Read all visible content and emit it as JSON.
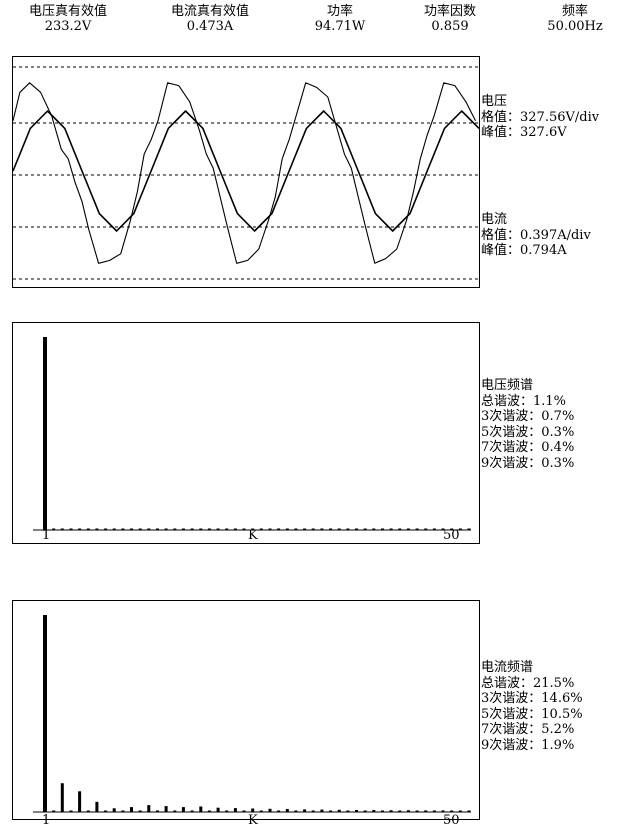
{
  "header": [
    {
      "label": "电压真有效值",
      "value": "233.2V"
    },
    {
      "label": "电流真有效值",
      "value": "0.473A"
    },
    {
      "label": "功率",
      "value": "94.71W"
    },
    {
      "label": "功率因数",
      "value": "0.859"
    },
    {
      "label": "频率",
      "value": "50.00Hz"
    }
  ],
  "waveform": {
    "voltage": {
      "title": "电压",
      "scale": "格值：327.56V/div",
      "peak": "峰值：327.6V"
    },
    "current": {
      "title": "电流",
      "scale": "格值：0.397A/div",
      "peak": "峰值：0.794A"
    }
  },
  "voltage_spectrum": {
    "title": "电压频谱",
    "lines": [
      "总谐波：1.1%",
      "3次谐波：0.7%",
      "5次谐波：0.3%",
      "7次谐波：0.4%",
      "9次谐波：0.3%"
    ],
    "x_ticks": {
      "start": "1",
      "mid": "K",
      "end": "50"
    }
  },
  "current_spectrum": {
    "title": "电流频谱",
    "lines": [
      "总谐波：21.5%",
      "3次谐波：14.6%",
      "5次谐波：10.5%",
      "7次谐波：5.2%",
      "9次谐波：1.9%"
    ],
    "x_ticks": {
      "start": "1",
      "mid": "K",
      "end": "50"
    }
  },
  "chart_data": [
    {
      "type": "line",
      "x_unit": "cycles",
      "series": [
        {
          "name": "电压",
          "x": [
            0,
            0.125,
            0.25,
            0.375,
            0.5,
            0.625,
            0.75,
            0.875,
            1.0,
            1.125,
            1.25,
            1.375,
            1.5,
            1.625,
            1.75,
            1.875,
            2.0,
            2.125,
            2.25,
            2.375,
            2.5,
            2.625,
            2.75,
            2.875,
            3.0,
            3.125,
            3.25,
            3.375
          ],
          "y": [
            0,
            0.71,
            1.0,
            0.71,
            0,
            -0.71,
            -1.0,
            -0.71,
            0,
            0.71,
            1.0,
            0.71,
            0,
            -0.71,
            -1.0,
            -0.71,
            0,
            0.71,
            1.0,
            0.71,
            0,
            -0.71,
            -1.0,
            -0.71,
            0,
            0.71,
            1.0,
            0.71
          ]
        },
        {
          "name": "电流",
          "x": [
            0,
            0.05,
            0.12,
            0.2,
            0.28,
            0.35,
            0.4,
            0.45,
            0.5,
            0.55,
            0.62,
            0.7,
            0.78,
            0.85,
            0.9,
            0.95,
            1.0,
            1.05,
            1.12,
            1.2,
            1.28,
            1.35,
            1.4,
            1.45,
            1.5,
            1.55,
            1.62,
            1.7,
            1.78,
            1.85,
            1.9,
            1.95,
            2.0,
            2.05,
            2.12,
            2.2,
            2.28,
            2.35,
            2.4,
            2.45,
            2.5,
            2.55,
            2.62,
            2.7,
            2.78,
            2.85,
            2.9,
            2.95,
            3.0,
            3.05,
            3.12,
            3.2,
            3.28,
            3.35
          ],
          "y": [
            0.55,
            0.85,
            0.95,
            0.85,
            0.6,
            0.25,
            0.15,
            -0.1,
            -0.3,
            -0.6,
            -0.95,
            -0.92,
            -0.85,
            -0.5,
            -0.2,
            0.2,
            0.35,
            0.55,
            0.95,
            0.92,
            0.75,
            0.45,
            0.2,
            0.05,
            -0.25,
            -0.55,
            -0.95,
            -0.92,
            -0.8,
            -0.5,
            -0.25,
            0.15,
            0.35,
            0.6,
            0.95,
            0.9,
            0.8,
            0.45,
            0.2,
            0.05,
            -0.25,
            -0.55,
            -0.95,
            -0.9,
            -0.8,
            -0.5,
            -0.2,
            0.15,
            0.4,
            0.6,
            0.95,
            0.92,
            0.75,
            0.55
          ]
        }
      ],
      "grid": true
    },
    {
      "type": "bar",
      "x": [
        1,
        2,
        3,
        4,
        5,
        6,
        7,
        8,
        9,
        10,
        11,
        12,
        13,
        14,
        15,
        16,
        17,
        18,
        19,
        20,
        21,
        22,
        23,
        24,
        25,
        26,
        27,
        28,
        29,
        30,
        31,
        32,
        33,
        34,
        35,
        36,
        37,
        38,
        39,
        40,
        41,
        42,
        43,
        44,
        45,
        46,
        47,
        48,
        49,
        50
      ],
      "values": [
        100,
        0.2,
        0.7,
        0.2,
        0.3,
        0.2,
        0.4,
        0.2,
        0.3,
        0.2,
        0.3,
        0.2,
        0.3,
        0.2,
        0.3,
        0.2,
        0.3,
        0.2,
        0.3,
        0.2,
        0.3,
        0.2,
        0.3,
        0.2,
        0.3,
        0.2,
        0.3,
        0.2,
        0.3,
        0.2,
        0.3,
        0.2,
        0.3,
        0.2,
        0.3,
        0.2,
        0.3,
        0.2,
        0.3,
        0.2,
        0.3,
        0.2,
        0.3,
        0.2,
        0.3,
        0.2,
        0.3,
        0.2,
        0.3,
        0.2
      ],
      "ylim": [
        0,
        110
      ]
    },
    {
      "type": "bar",
      "x": [
        1,
        2,
        3,
        4,
        5,
        6,
        7,
        8,
        9,
        10,
        11,
        12,
        13,
        14,
        15,
        16,
        17,
        18,
        19,
        20,
        21,
        22,
        23,
        24,
        25,
        26,
        27,
        28,
        29,
        30,
        31,
        32,
        33,
        34,
        35,
        36,
        37,
        38,
        39,
        40,
        41,
        42,
        43,
        44,
        45,
        46,
        47,
        48,
        49,
        50
      ],
      "values": [
        100,
        0.5,
        14.6,
        0.5,
        10.5,
        0.5,
        5.2,
        0.5,
        1.9,
        0.5,
        2.5,
        0.5,
        3.5,
        0.5,
        3.0,
        0.5,
        2.5,
        0.5,
        2.8,
        0.5,
        2.2,
        0.5,
        2.0,
        0.5,
        1.8,
        0.5,
        1.6,
        0.5,
        1.5,
        0.5,
        1.3,
        0.5,
        1.2,
        0.5,
        1.1,
        0.5,
        1.0,
        0.5,
        1.0,
        0.5,
        0.9,
        0.5,
        0.9,
        0.5,
        0.8,
        0.5,
        0.8,
        0.5,
        0.7,
        0.5
      ],
      "ylim": [
        0,
        110
      ]
    }
  ]
}
